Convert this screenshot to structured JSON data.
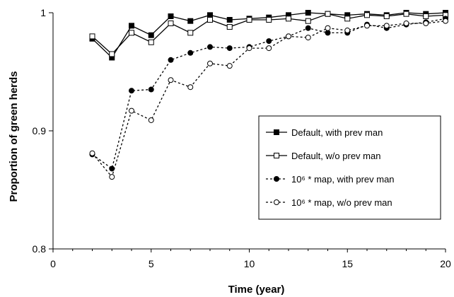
{
  "chart_data": {
    "type": "line",
    "xlabel": "Time (year)",
    "ylabel": "Proportion of green herds",
    "xlim": [
      0,
      20
    ],
    "ylim": [
      0.8,
      1.0
    ],
    "xticks": [
      "0",
      "5",
      "10",
      "15",
      "20"
    ],
    "yticks": [
      "0.8",
      "0.9",
      "1"
    ],
    "grid": false,
    "legend_position": "center-right",
    "x": [
      2,
      3,
      4,
      5,
      6,
      7,
      8,
      9,
      10,
      11,
      12,
      13,
      14,
      15,
      16,
      17,
      18,
      19,
      20
    ],
    "series": [
      {
        "name": "Default, with prev man",
        "marker": "filled-square",
        "line": "solid",
        "values": [
          0.978,
          0.962,
          0.989,
          0.981,
          0.997,
          0.993,
          0.998,
          0.994,
          0.995,
          0.996,
          0.998,
          1.0,
          0.999,
          0.998,
          0.999,
          0.998,
          1.0,
          0.999,
          1.0
        ]
      },
      {
        "name": "Default, w/o prev man",
        "marker": "open-square",
        "line": "solid",
        "values": [
          0.98,
          0.965,
          0.983,
          0.975,
          0.991,
          0.983,
          0.994,
          0.988,
          0.994,
          0.994,
          0.995,
          0.993,
          0.999,
          0.995,
          0.998,
          0.997,
          0.999,
          0.997,
          0.998
        ]
      },
      {
        "name": "10⁶ * map, with prev man",
        "marker": "filled-circle",
        "line": "dashed",
        "values": [
          0.88,
          0.868,
          0.934,
          0.935,
          0.96,
          0.966,
          0.971,
          0.97,
          0.971,
          0.976,
          0.98,
          0.987,
          0.983,
          0.983,
          0.99,
          0.987,
          0.99,
          0.992,
          0.995
        ]
      },
      {
        "name": "10⁶ * map, w/o prev man",
        "marker": "open-circle",
        "line": "dashed",
        "values": [
          0.881,
          0.861,
          0.917,
          0.909,
          0.943,
          0.937,
          0.957,
          0.955,
          0.97,
          0.97,
          0.98,
          0.979,
          0.987,
          0.985,
          0.989,
          0.989,
          0.991,
          0.991,
          0.993
        ]
      }
    ]
  }
}
